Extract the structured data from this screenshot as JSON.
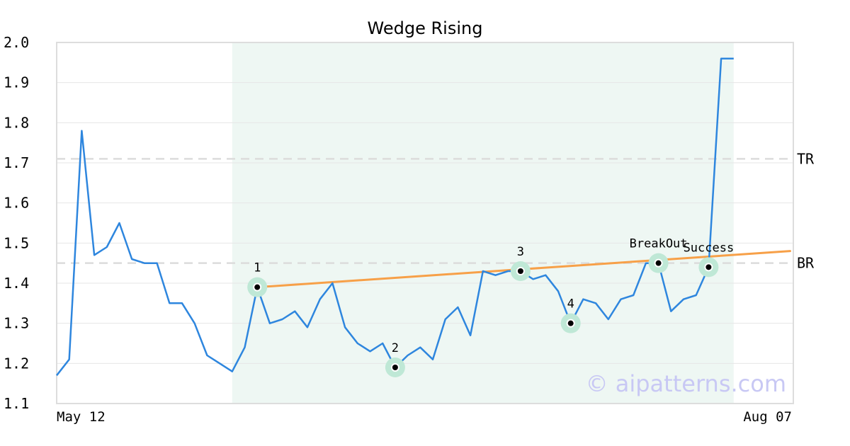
{
  "chart_data": {
    "type": "line",
    "title": "Wedge Rising",
    "xlabel": "",
    "ylabel": "",
    "ylim": [
      1.1,
      2.0
    ],
    "y_ticks": [
      "1.1",
      "1.2",
      "1.3",
      "1.4",
      "1.5",
      "1.6",
      "1.7",
      "1.8",
      "1.9",
      "2.0"
    ],
    "x_tick_labels": [
      "May 12",
      "Aug 07"
    ],
    "grid": "horizontal",
    "series": [
      {
        "color": "#2e86de",
        "values": [
          1.17,
          1.21,
          1.78,
          1.47,
          1.49,
          1.55,
          1.46,
          1.45,
          1.45,
          1.35,
          1.35,
          1.3,
          1.22,
          1.2,
          1.18,
          1.24,
          1.39,
          1.3,
          1.31,
          1.33,
          1.29,
          1.36,
          1.4,
          1.29,
          1.25,
          1.23,
          1.25,
          1.19,
          1.22,
          1.24,
          1.21,
          1.31,
          1.34,
          1.27,
          1.43,
          1.42,
          1.43,
          1.43,
          1.41,
          1.42,
          1.38,
          1.3,
          1.36,
          1.35,
          1.31,
          1.36,
          1.37,
          1.45,
          1.45,
          1.33,
          1.36,
          1.37,
          1.44,
          1.96,
          1.96
        ]
      }
    ],
    "highlight_region": {
      "start_index": 14,
      "end_index": 54,
      "color": "#eef7f3"
    },
    "trendline": {
      "start_index": 16,
      "start_value": 1.39,
      "end_index": 58.5,
      "end_value": 1.48,
      "color": "#f7a048"
    },
    "levels": [
      {
        "label": "TR",
        "value": 1.71
      },
      {
        "label": "BR",
        "value": 1.45
      }
    ],
    "pattern_points": [
      {
        "label": "1",
        "index": 16,
        "value": 1.39
      },
      {
        "label": "2",
        "index": 27,
        "value": 1.19
      },
      {
        "label": "3",
        "index": 37,
        "value": 1.43
      },
      {
        "label": "4",
        "index": 41,
        "value": 1.3
      },
      {
        "label": "BreakOut",
        "index": 48,
        "value": 1.45
      },
      {
        "label": "Success",
        "index": 52,
        "value": 1.44
      }
    ]
  },
  "watermark": "© aipatterns.com"
}
